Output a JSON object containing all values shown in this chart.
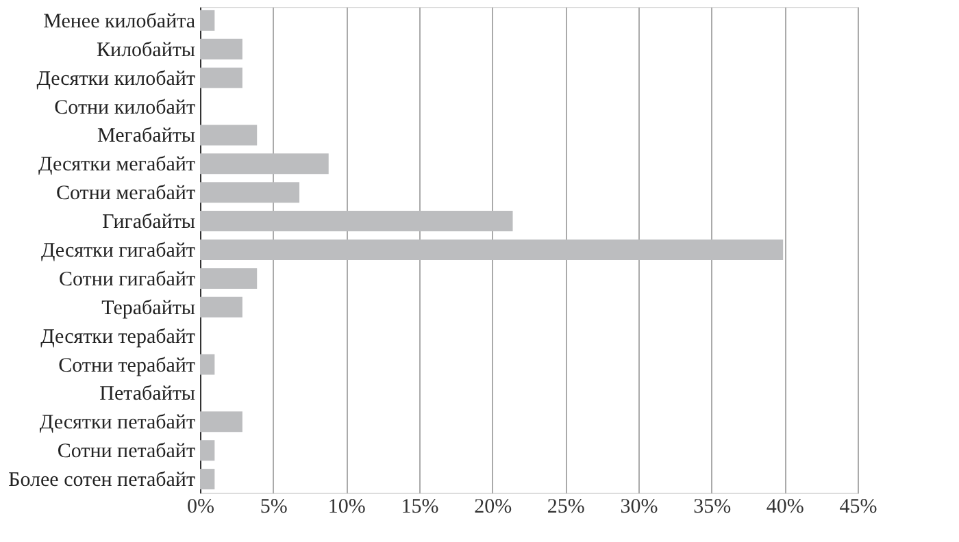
{
  "chart_data": {
    "type": "bar",
    "orientation": "horizontal",
    "categories": [
      "Менее килобайта",
      "Килобайты",
      "Десятки килобайт",
      "Сотни килобайт",
      "Мегабайты",
      "Десятки мегабайт",
      "Сотни мегабайт",
      "Гигабайты",
      "Десятки гигабайт",
      "Сотни гигабайт",
      "Терабайты",
      "Десятки терабайт",
      "Сотни терабайт",
      "Петабайты",
      "Десятки петабайт",
      "Сотни петабайт",
      "Более сотен петабайт"
    ],
    "values": [
      1.0,
      2.9,
      2.9,
      0,
      3.9,
      8.8,
      6.8,
      21.4,
      39.9,
      3.9,
      2.9,
      0,
      1.0,
      0,
      2.9,
      1.0,
      1.0
    ],
    "color": "#bcbdbf",
    "xlim": [
      0,
      45
    ],
    "xticks": [
      {
        "value": 0,
        "label": "0%"
      },
      {
        "value": 5,
        "label": "5%"
      },
      {
        "value": 10,
        "label": "10%"
      },
      {
        "value": 15,
        "label": "15%"
      },
      {
        "value": 20,
        "label": "20%"
      },
      {
        "value": 25,
        "label": "25%"
      },
      {
        "value": 30,
        "label": "30%"
      },
      {
        "value": 35,
        "label": "35%"
      },
      {
        "value": 40,
        "label": "40%"
      },
      {
        "value": 45,
        "label": "45%"
      }
    ],
    "grid": "x"
  }
}
